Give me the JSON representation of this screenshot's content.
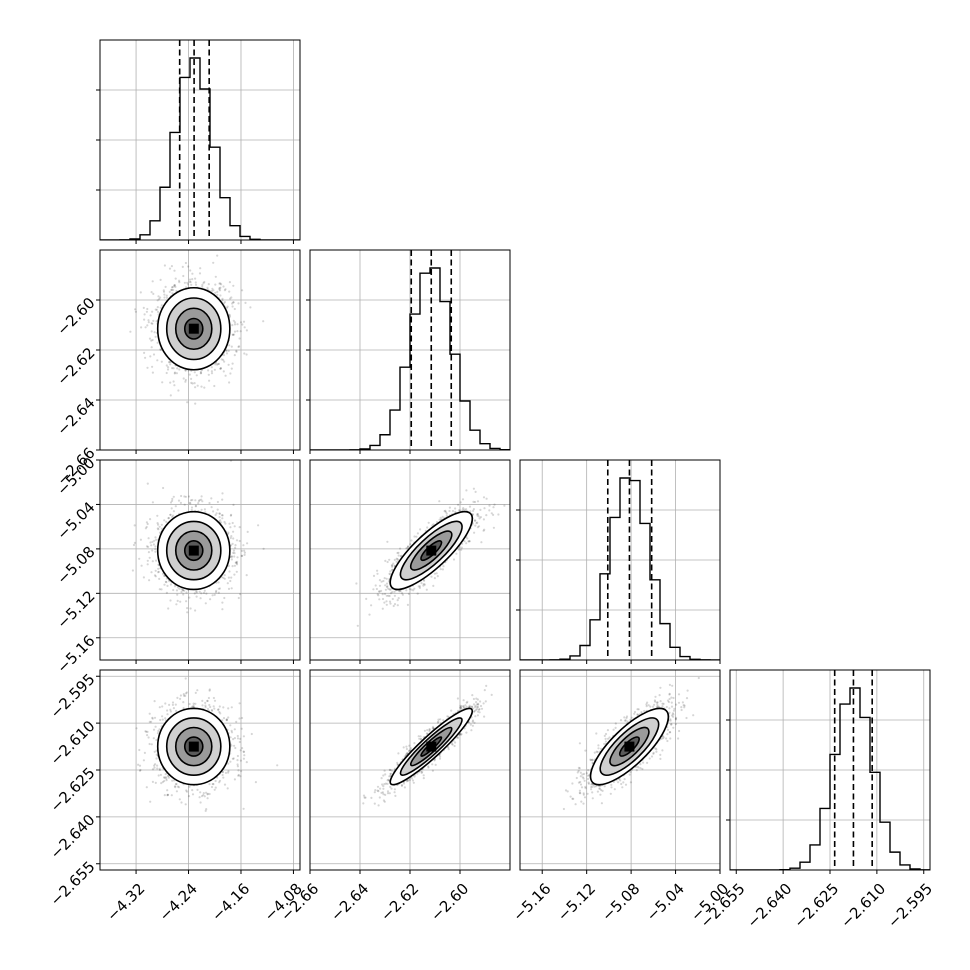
{
  "chart_data": {
    "type": "corner",
    "grid": true,
    "parameters": [
      {
        "range": [
          -4.375,
          -4.07
        ],
        "ticks": [
          -4.32,
          -4.24,
          -4.16,
          -4.08
        ],
        "labels": [
          "−4.32",
          "−4.24",
          "−4.16",
          "−4.08"
        ],
        "mean": -4.232,
        "sigma": 0.0275,
        "quantiles": [
          -4.2535,
          -4.2315,
          -4.2085
        ]
      },
      {
        "range": [
          -2.66,
          -2.58
        ],
        "ticks": [
          -2.66,
          -2.64,
          -2.62,
          -2.6
        ],
        "labels": [
          "−2.66",
          "−2.64",
          "−2.62",
          "−2.60"
        ],
        "mean": -2.6115,
        "sigma": 0.0082,
        "quantiles": [
          -2.6195,
          -2.6115,
          -2.6035
        ]
      },
      {
        "range": [
          -5.18,
          -5.0
        ],
        "ticks": [
          -5.16,
          -5.12,
          -5.08,
          -5.04,
          -5.0
        ],
        "labels": [
          "−5.16",
          "−5.12",
          "−5.08",
          "−5.04",
          "−5.00"
        ],
        "mean": -5.0815,
        "sigma": 0.0175,
        "quantiles": [
          -5.101,
          -5.0815,
          -5.0615
        ]
      },
      {
        "range": [
          -2.657,
          -2.593
        ],
        "ticks": [
          -2.655,
          -2.64,
          -2.625,
          -2.61,
          -2.595
        ],
        "labels": [
          "−2.655",
          "−2.640",
          "−2.625",
          "−2.610",
          "−2.595"
        ],
        "mean": -2.6175,
        "sigma": 0.0061,
        "quantiles": [
          -2.6235,
          -2.6175,
          -2.6115
        ]
      }
    ],
    "y_tick_labels": {
      "row1": [
        "−2.60",
        "−2.62",
        "−2.64",
        "−2.66"
      ],
      "row2": [
        "−5.00",
        "−5.04",
        "−5.08",
        "−5.12",
        "−5.16"
      ],
      "row3": [
        "−2.595",
        "−2.610",
        "−2.625",
        "−2.640",
        "−2.655"
      ]
    },
    "y_tick_values": {
      "row1": [
        -2.6,
        -2.62,
        -2.64,
        -2.66
      ],
      "row2": [
        -5.0,
        -5.04,
        -5.08,
        -5.12,
        -5.16
      ],
      "row3": [
        -2.595,
        -2.61,
        -2.625,
        -2.64,
        -2.655
      ]
    },
    "correlations": [
      [
        1,
        0,
        0,
        0
      ],
      [
        0,
        1,
        0.82,
        0.93
      ],
      [
        0,
        0.82,
        1,
        0.78
      ],
      [
        0,
        0.93,
        0.78,
        1
      ]
    ],
    "contour_levels": [
      0.5,
      1.0,
      1.5,
      2.0
    ],
    "samples_shown": 1400
  }
}
